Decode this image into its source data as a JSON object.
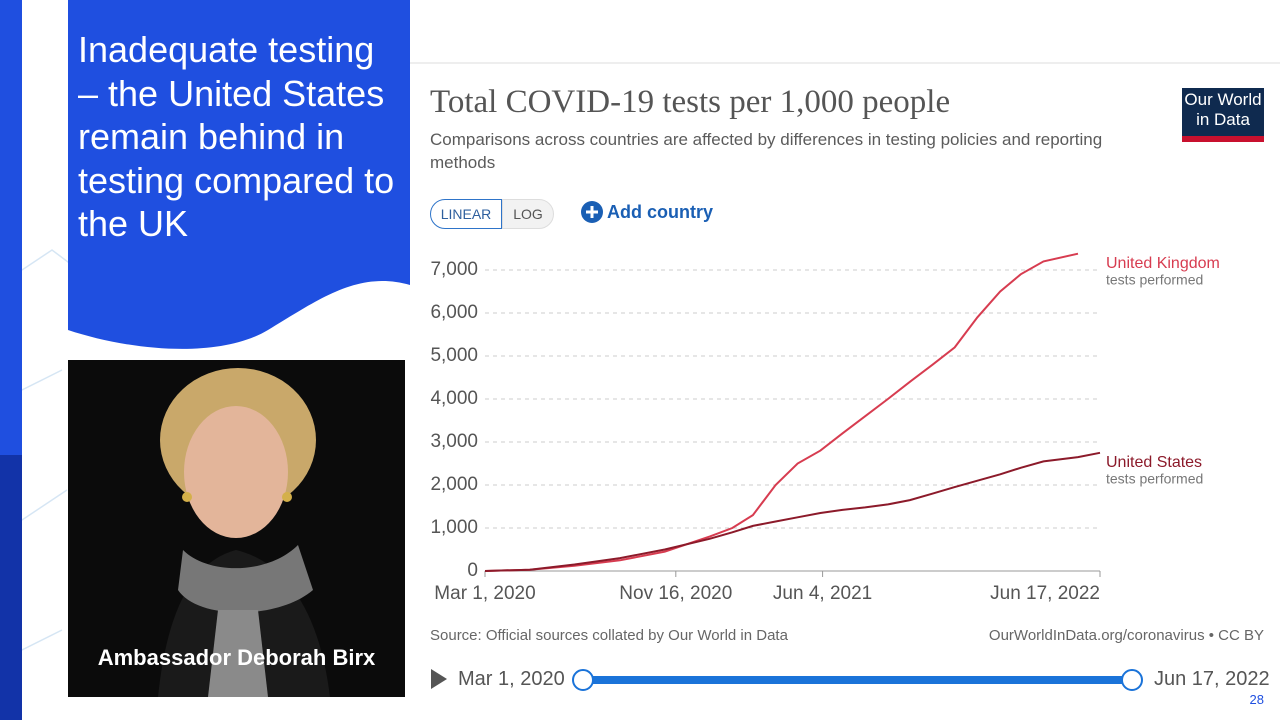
{
  "slide": {
    "title": "Inadequate testing – the United States remain behind in testing compared to the UK",
    "photo_caption": "Ambassador Deborah Birx",
    "page_number": "28"
  },
  "controls": {
    "linear": "LINEAR",
    "log": "LOG",
    "add_country": "Add country",
    "timeline_start": "Mar 1, 2020",
    "timeline_end": "Jun 17, 2022"
  },
  "logo": "Our World in Data",
  "source": "Source: Official sources collated by Our World in Data",
  "credit": "OurWorldInData.org/coronavirus • CC BY",
  "chart_data": {
    "type": "line",
    "title": "Total COVID-19 tests per 1,000 people",
    "subtitle": "Comparisons across countries are affected by differences in testing policies and reporting methods",
    "x": [
      "2020-03-01",
      "2020-05-01",
      "2020-07-01",
      "2020-09-01",
      "2020-11-01",
      "2021-01-01",
      "2021-02-01",
      "2021-03-01",
      "2021-04-01",
      "2021-05-01",
      "2021-06-01",
      "2021-07-01",
      "2021-08-01",
      "2021-09-01",
      "2021-10-01",
      "2021-11-01",
      "2021-12-01",
      "2022-01-01",
      "2022-02-01",
      "2022-03-01",
      "2022-04-01",
      "2022-05-18",
      "2022-06-17"
    ],
    "series": [
      {
        "name": "United Kingdom",
        "sublabel": "tests performed",
        "color": "#d73c50",
        "values": [
          0,
          30,
          120,
          250,
          450,
          800,
          1000,
          1300,
          2000,
          2500,
          2800,
          3200,
          3600,
          4000,
          4400,
          4800,
          5200,
          5900,
          6500,
          6900,
          7200,
          7380,
          null
        ]
      },
      {
        "name": "United States",
        "sublabel": "tests performed",
        "color": "#8c1a2a",
        "values": [
          0,
          30,
          150,
          300,
          500,
          750,
          900,
          1050,
          1150,
          1250,
          1350,
          1420,
          1480,
          1550,
          1650,
          1800,
          1950,
          2100,
          2250,
          2400,
          2550,
          2650,
          2750
        ]
      }
    ],
    "xlim": [
      "2020-03-01",
      "2022-06-17"
    ],
    "xticks": [
      {
        "value": "2020-03-01",
        "label": "Mar 1, 2020"
      },
      {
        "value": "2020-11-16",
        "label": "Nov 16, 2020"
      },
      {
        "value": "2021-06-04",
        "label": "Jun 4, 2021"
      },
      {
        "value": "2022-06-17",
        "label": "Jun 17, 2022"
      }
    ],
    "ylim": [
      0,
      7500
    ],
    "yticks": [
      0,
      {
        "value": 1000,
        "label": "1,000"
      },
      {
        "value": 2000,
        "label": "2,000"
      },
      {
        "value": 3000,
        "label": "3,000"
      },
      {
        "value": 4000,
        "label": "4,000"
      },
      {
        "value": 5000,
        "label": "5,000"
      },
      {
        "value": 6000,
        "label": "6,000"
      },
      {
        "value": 7000,
        "label": "7,000"
      }
    ],
    "grid": true
  }
}
